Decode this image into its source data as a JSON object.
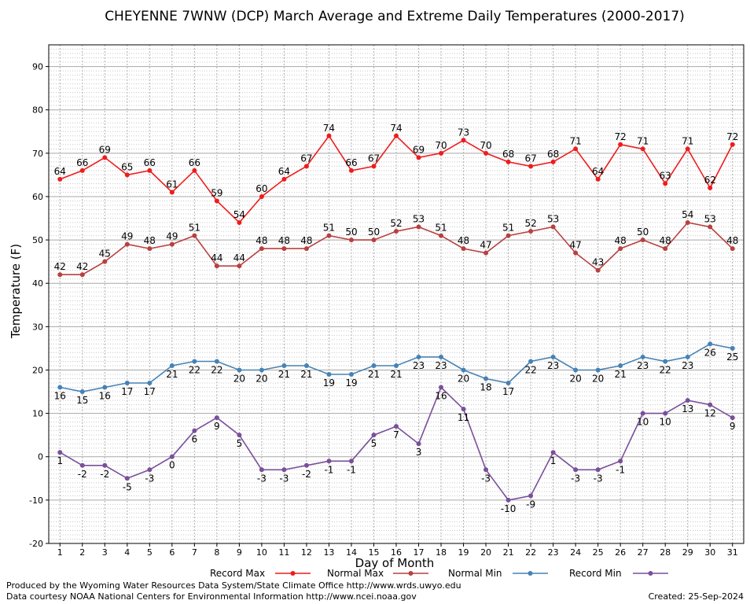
{
  "chart_data": {
    "type": "line",
    "title": "CHEYENNE 7WNW (DCP) March Average and Extreme Daily Temperatures (2000-2017)",
    "xlabel": "Day of Month",
    "ylabel": "Temperature (F)",
    "ylim": [
      -20,
      95
    ],
    "yticks": [
      -20,
      -10,
      0,
      10,
      20,
      30,
      40,
      50,
      60,
      70,
      80,
      90
    ],
    "x": [
      1,
      2,
      3,
      4,
      5,
      6,
      7,
      8,
      9,
      10,
      11,
      12,
      13,
      14,
      15,
      16,
      17,
      18,
      19,
      20,
      21,
      22,
      23,
      24,
      25,
      26,
      27,
      28,
      29,
      30,
      31
    ],
    "grid": true,
    "legend_position": "bottom",
    "series": [
      {
        "name": "Record Max",
        "color": "#ee1c1c",
        "values": [
          64,
          66,
          69,
          65,
          66,
          61,
          66,
          59,
          54,
          60,
          64,
          67,
          74,
          66,
          67,
          74,
          69,
          70,
          73,
          70,
          68,
          67,
          68,
          71,
          64,
          72,
          71,
          63,
          71,
          62,
          72
        ]
      },
      {
        "name": "Normal Max",
        "color": "#b84040",
        "values": [
          42,
          42,
          45,
          49,
          48,
          49,
          51,
          44,
          44,
          48,
          48,
          48,
          51,
          50,
          50,
          52,
          53,
          51,
          48,
          47,
          51,
          52,
          53,
          47,
          43,
          48,
          50,
          48,
          54,
          53,
          48
        ]
      },
      {
        "name": "Normal Min",
        "color": "#4682b4",
        "values": [
          16,
          15,
          16,
          17,
          17,
          21,
          22,
          22,
          20,
          20,
          21,
          21,
          19,
          19,
          21,
          21,
          23,
          23,
          20,
          18,
          17,
          22,
          23,
          20,
          20,
          21,
          23,
          22,
          23,
          26,
          25
        ]
      },
      {
        "name": "Record Min",
        "color": "#7a4f9a",
        "values": [
          1,
          -2,
          -2,
          -5,
          -3,
          0,
          6,
          9,
          5,
          -3,
          -3,
          -2,
          -1,
          -1,
          5,
          7,
          3,
          16,
          11,
          -3,
          -10,
          -9,
          1,
          -3,
          -3,
          -1,
          10,
          10,
          13,
          12,
          9
        ]
      }
    ]
  },
  "footer": {
    "line1": "Produced by the Wyoming Water Resources Data System/State Climate Office http://www.wrds.uwyo.edu",
    "line2": "Data courtesy NOAA National Centers for Environmental Information http://www.ncei.noaa.gov",
    "created": "Created:  25-Sep-2024"
  }
}
